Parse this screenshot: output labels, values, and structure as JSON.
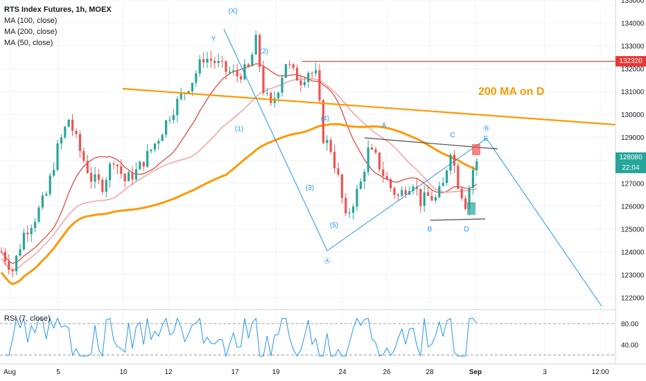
{
  "legend": {
    "title": "RTS Index Futures, 1h, MOEX",
    "ma1": "MA (100, close)",
    "ma2": "MA (200, close)",
    "ma3": "MA (50, close)"
  },
  "rsi_label": "RSI (7, close)",
  "price_tags": {
    "level": "132320",
    "last": "128080",
    "countdown": "22:04"
  },
  "colors": {
    "up": "#26a69a",
    "down": "#ef5350",
    "ma100": "#f4a6a6",
    "ma200": "#ff9800",
    "ma50": "#e53935",
    "wave": "#2196f3",
    "level": "#e53935",
    "trend_orange": "#ff9800"
  },
  "chart_data": {
    "type": "candlestick",
    "y_ticks": [
      122000,
      123000,
      124000,
      125000,
      126000,
      127000,
      128000,
      129000,
      130000,
      131000,
      132000,
      133000,
      134000,
      135000
    ],
    "x_ticks": [
      "Aug",
      "5",
      "10",
      "12",
      "17",
      "19",
      "24",
      "26",
      "28",
      "Sep",
      "3",
      "12:00"
    ],
    "y_range": [
      121500,
      135000
    ],
    "rsi_ticks": [
      "80.00",
      "40.00"
    ],
    "annotations": {
      "ma_d_label": "200 MA on D",
      "waves": [
        "(X)",
        "Y",
        "(1)",
        "(2)",
        "(3)",
        "(4)",
        "(5)",
        "A",
        "C",
        "E",
        "B",
        "D",
        "Ⓐ",
        "Ⓑ"
      ]
    },
    "price_path": [
      [
        0,
        124000
      ],
      [
        3,
        123200
      ],
      [
        6,
        124800
      ],
      [
        9,
        125500
      ],
      [
        12,
        126500
      ],
      [
        15,
        128500
      ],
      [
        18,
        129800
      ],
      [
        21,
        128400
      ],
      [
        24,
        127200
      ],
      [
        27,
        126900
      ],
      [
        30,
        128100
      ],
      [
        33,
        127100
      ],
      [
        36,
        127500
      ],
      [
        39,
        128200
      ],
      [
        42,
        129000
      ],
      [
        45,
        130000
      ],
      [
        48,
        130800
      ],
      [
        51,
        131500
      ],
      [
        54,
        132500
      ],
      [
        57,
        132300
      ],
      [
        60,
        131900
      ],
      [
        63,
        131700
      ],
      [
        66,
        132000
      ],
      [
        68,
        133200
      ],
      [
        70,
        131100
      ],
      [
        72,
        130300
      ],
      [
        74,
        131200
      ],
      [
        76,
        132300
      ],
      [
        78,
        131800
      ],
      [
        80,
        131500
      ],
      [
        82,
        131900
      ],
      [
        84,
        131700
      ],
      [
        86,
        129000
      ],
      [
        88,
        128500
      ],
      [
        90,
        127200
      ],
      [
        92,
        125400
      ],
      [
        94,
        126200
      ],
      [
        96,
        127000
      ],
      [
        98,
        128400
      ],
      [
        100,
        128100
      ],
      [
        102,
        127400
      ],
      [
        104,
        126800
      ],
      [
        106,
        126400
      ],
      [
        108,
        126800
      ],
      [
        110,
        127100
      ],
      [
        112,
        126200
      ],
      [
        114,
        126400
      ],
      [
        116,
        126300
      ],
      [
        118,
        126900
      ],
      [
        120,
        128500
      ],
      [
        122,
        127000
      ],
      [
        124,
        126100
      ],
      [
        126,
        127600
      ],
      [
        128,
        128100
      ]
    ]
  }
}
